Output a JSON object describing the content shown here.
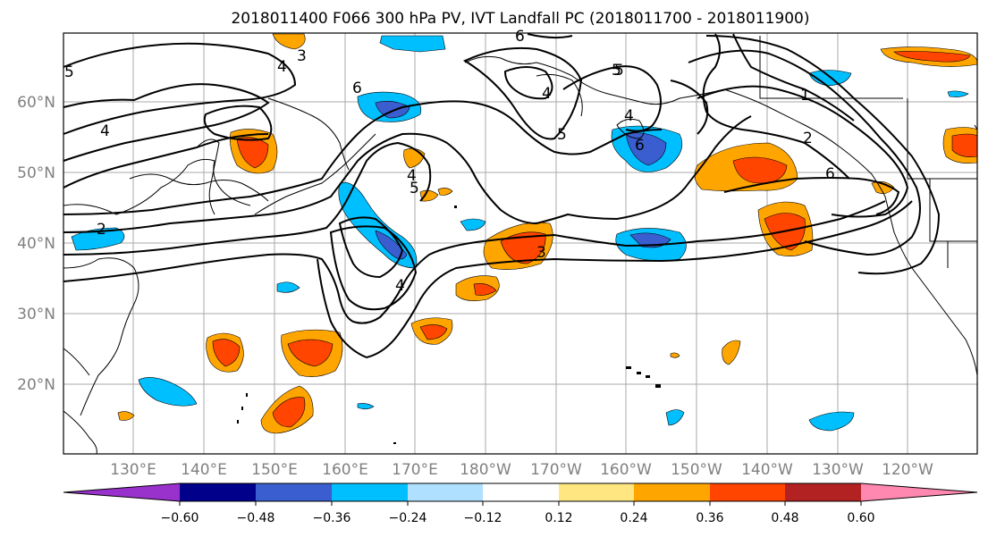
{
  "title": "2018011400 F066 300 hPa PV, IVT Landfall PC (2018011700 - 2018011900)",
  "map": {
    "lat_labels": [
      "60°N",
      "50°N",
      "40°N",
      "30°N",
      "20°N"
    ],
    "lon_labels": [
      "130°E",
      "140°E",
      "150°E",
      "160°E",
      "170°E",
      "180°W",
      "170°W",
      "160°W",
      "150°W",
      "140°W",
      "130°W",
      "120°W"
    ],
    "contour_labels": [
      "2",
      "3",
      "5",
      "4",
      "6",
      "5",
      "5",
      "4",
      "4",
      "5",
      "4",
      "6",
      "6",
      "1",
      "2",
      "3",
      "5",
      "6",
      "4",
      "4"
    ]
  },
  "colorbar": {
    "ticks": [
      "−0.60",
      "−0.48",
      "−0.36",
      "−0.24",
      "−0.12",
      "0.12",
      "0.24",
      "0.36",
      "0.48",
      "0.60"
    ],
    "colors": [
      "#9932cc",
      "#00008b",
      "#3a5ed0",
      "#00bfff",
      "#b0e0ff",
      "#ffffff",
      "#ffe680",
      "#ffa500",
      "#ff4500",
      "#b22222",
      "#ff88b0"
    ]
  }
}
